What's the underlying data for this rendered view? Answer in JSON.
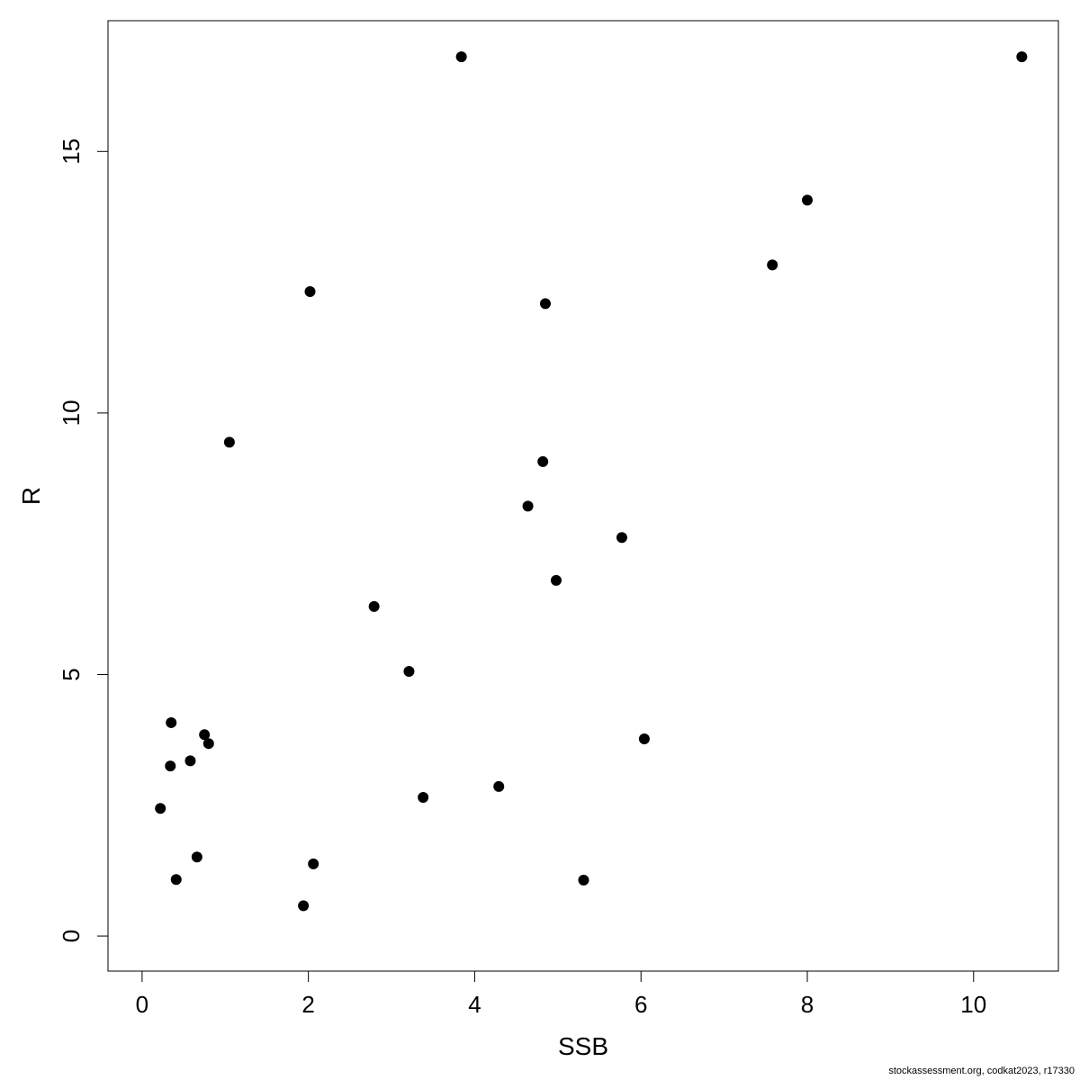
{
  "chart_data": {
    "type": "scatter",
    "title": "",
    "xlabel": "SSB",
    "ylabel": "R",
    "xlim": [
      -0.41,
      11.02
    ],
    "ylim": [
      -0.67,
      17.5
    ],
    "xticks": [
      0,
      2,
      4,
      6,
      8,
      10
    ],
    "yticks": [
      0,
      5,
      10,
      15
    ],
    "grid": false,
    "marker_color": "#000000",
    "points": [
      {
        "x": 3.84,
        "y": 16.81
      },
      {
        "x": 10.58,
        "y": 16.81
      },
      {
        "x": 8.0,
        "y": 14.07
      },
      {
        "x": 7.58,
        "y": 12.83
      },
      {
        "x": 2.02,
        "y": 12.32
      },
      {
        "x": 4.85,
        "y": 12.09
      },
      {
        "x": 1.05,
        "y": 9.44
      },
      {
        "x": 4.82,
        "y": 9.07
      },
      {
        "x": 4.64,
        "y": 8.22
      },
      {
        "x": 5.77,
        "y": 7.62
      },
      {
        "x": 4.98,
        "y": 6.8
      },
      {
        "x": 2.79,
        "y": 6.3
      },
      {
        "x": 3.21,
        "y": 5.06
      },
      {
        "x": 0.35,
        "y": 4.08
      },
      {
        "x": 0.75,
        "y": 3.85
      },
      {
        "x": 0.8,
        "y": 3.68
      },
      {
        "x": 6.04,
        "y": 3.77
      },
      {
        "x": 0.58,
        "y": 3.35
      },
      {
        "x": 0.34,
        "y": 3.25
      },
      {
        "x": 4.29,
        "y": 2.86
      },
      {
        "x": 3.38,
        "y": 2.65
      },
      {
        "x": 0.22,
        "y": 2.44
      },
      {
        "x": 0.66,
        "y": 1.51
      },
      {
        "x": 2.06,
        "y": 1.38
      },
      {
        "x": 0.41,
        "y": 1.08
      },
      {
        "x": 5.31,
        "y": 1.07
      },
      {
        "x": 1.94,
        "y": 0.58
      }
    ]
  },
  "footer": "stockassessment.org, codkat2023, r17330"
}
